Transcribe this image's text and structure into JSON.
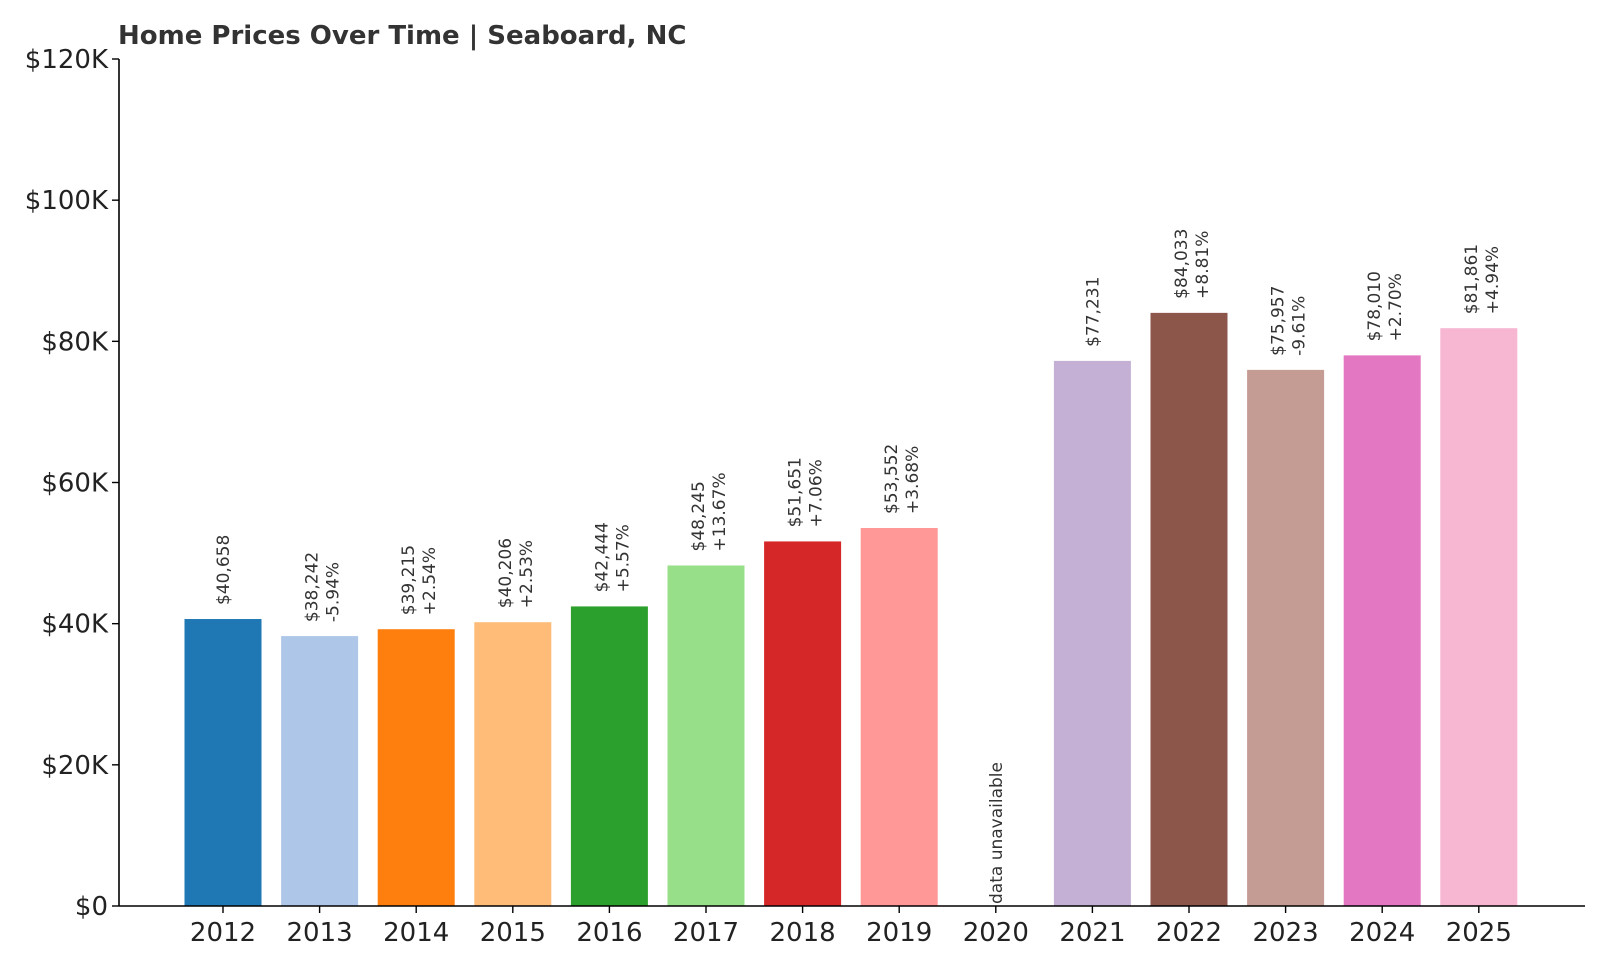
{
  "chart_data": {
    "type": "bar",
    "title": "Home Prices Over Time | Seaboard, NC",
    "xlabel": "",
    "ylabel": "",
    "ylim": [
      0,
      120000
    ],
    "yticks": [
      0,
      20000,
      40000,
      60000,
      80000,
      100000,
      120000
    ],
    "ytick_labels": [
      "$0",
      "$20K",
      "$40K",
      "$60K",
      "$80K",
      "$100K",
      "$120K"
    ],
    "grid": false,
    "categories": [
      "2012",
      "2013",
      "2014",
      "2015",
      "2016",
      "2017",
      "2018",
      "2019",
      "2020",
      "2021",
      "2022",
      "2023",
      "2024",
      "2025"
    ],
    "values": [
      40658,
      38242,
      39215,
      40206,
      42444,
      48245,
      51651,
      53552,
      null,
      77231,
      84033,
      75957,
      78010,
      81861
    ],
    "value_labels": [
      "$40,658",
      "$38,242",
      "$39,215",
      "$40,206",
      "$42,444",
      "$48,245",
      "$51,651",
      "$53,552",
      "",
      "$77,231",
      "$84,033",
      "$75,957",
      "$78,010",
      "$81,861"
    ],
    "change_labels": [
      "",
      "-5.94%",
      "+2.54%",
      "+2.53%",
      "+5.57%",
      "+13.67%",
      "+7.06%",
      "+3.68%",
      "",
      "",
      "+8.81%",
      "-9.61%",
      "+2.70%",
      "+4.94%"
    ],
    "missing_label": "data unavailable",
    "colors": [
      "#1f77b4",
      "#aec7e8",
      "#ff7f0e",
      "#ffbb78",
      "#2ca02c",
      "#98df8a",
      "#d62728",
      "#ff9896",
      "#9467bd",
      "#c5b0d5",
      "#8c564b",
      "#c49c94",
      "#e377c2",
      "#f7b6d2"
    ]
  }
}
